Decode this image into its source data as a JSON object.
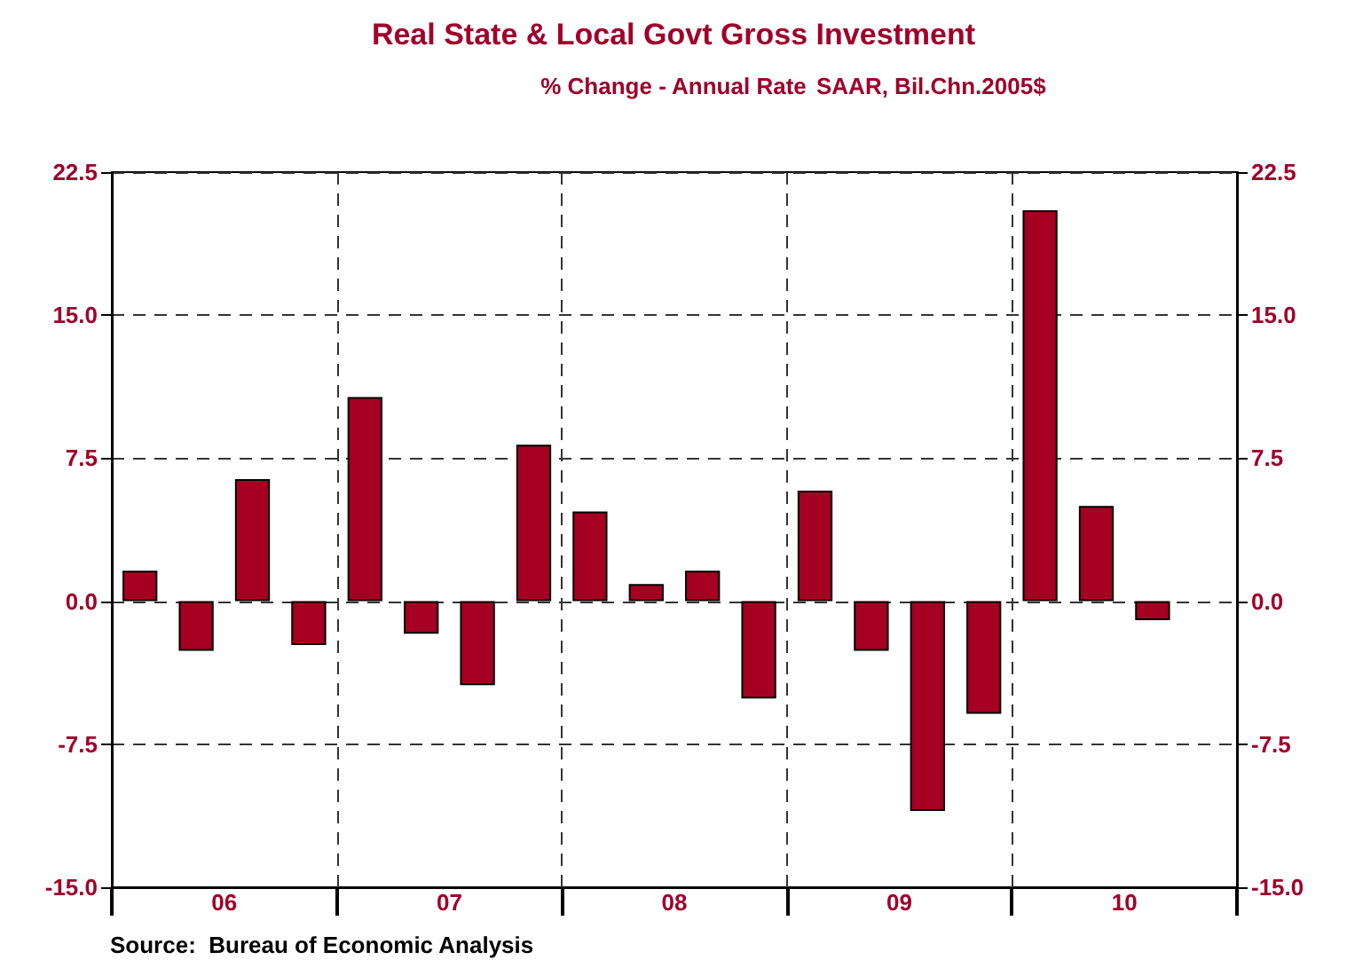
{
  "chart_data": {
    "type": "bar",
    "title": "Real State & Local Govt Gross Investment",
    "subtitle": "% Change - Annual Rate",
    "annotations": [
      "SAAR, Bil.Chn.2005$",
      "Source:  Bureau of Economic Analysis"
    ],
    "categories": [
      null,
      "06",
      null,
      null,
      null,
      "07",
      null,
      null,
      null,
      "08",
      null,
      null,
      null,
      "09",
      null,
      null,
      null,
      "10",
      null,
      null
    ],
    "series": [
      {
        "color": "#a50021",
        "values": [
          1.6,
          -2.6,
          6.4,
          -2.3,
          10.7,
          -1.7,
          -4.4,
          8.2,
          4.7,
          0.9,
          1.6,
          -5.1,
          5.8,
          -2.6,
          -11.0,
          -5.9,
          20.5,
          5.0,
          -1.0,
          null
        ]
      }
    ],
    "ylim": [
      -15,
      22.5
    ],
    "yticks": [
      {
        "value": -15,
        "label": "-15.0"
      },
      {
        "value": -7.5,
        "label": "-7.5"
      },
      {
        "value": 0,
        "label": "0.0"
      },
      {
        "value": 7.5,
        "label": "7.5"
      },
      {
        "value": 15,
        "label": "15.0"
      },
      {
        "value": 22.5,
        "label": "22.5"
      }
    ],
    "y2lim": [
      -15,
      22.5
    ],
    "y2ticks": [
      {
        "value": -15,
        "label": "-15.0"
      },
      {
        "value": -7.5,
        "label": "-7.5"
      },
      {
        "value": 0,
        "label": "0.0"
      },
      {
        "value": 7.5,
        "label": "7.5"
      },
      {
        "value": 15,
        "label": "15.0"
      },
      {
        "value": 22.5,
        "label": "22.5"
      }
    ],
    "grid": true
  }
}
